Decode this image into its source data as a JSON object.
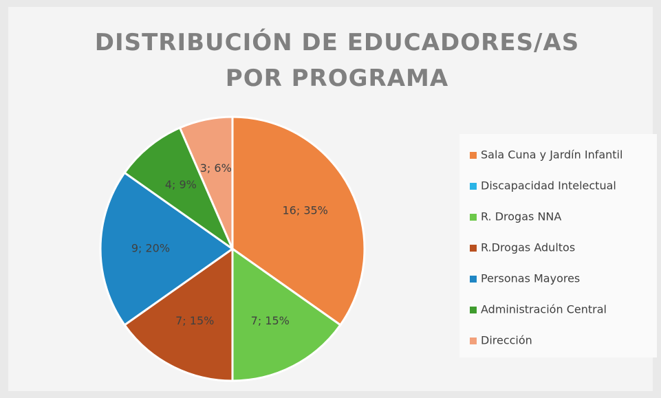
{
  "chart_data": {
    "type": "pie",
    "title": "DISTRIBUCIÓN DE EDUCADORES/AS POR PROGRAMA",
    "categories": [
      "Sala Cuna y Jardín Infantil",
      "Discapacidad Intelectual",
      "R. Drogas NNA",
      "R.Drogas Adultos",
      "Personas Mayores",
      "Administración Central",
      "Dirección"
    ],
    "values": [
      16,
      0,
      7,
      7,
      9,
      4,
      3
    ],
    "value_labels": [
      "16; 35%",
      null,
      "7; 15%",
      "7; 15%",
      "9; 20%",
      "4; 9%",
      "3; 6%"
    ],
    "colors": [
      "#ee8440",
      "#2ab4e6",
      "#6cc84a",
      "#b9501f",
      "#1f86c4",
      "#3f9c2e",
      "#f2a07a"
    ],
    "legend": "right"
  }
}
